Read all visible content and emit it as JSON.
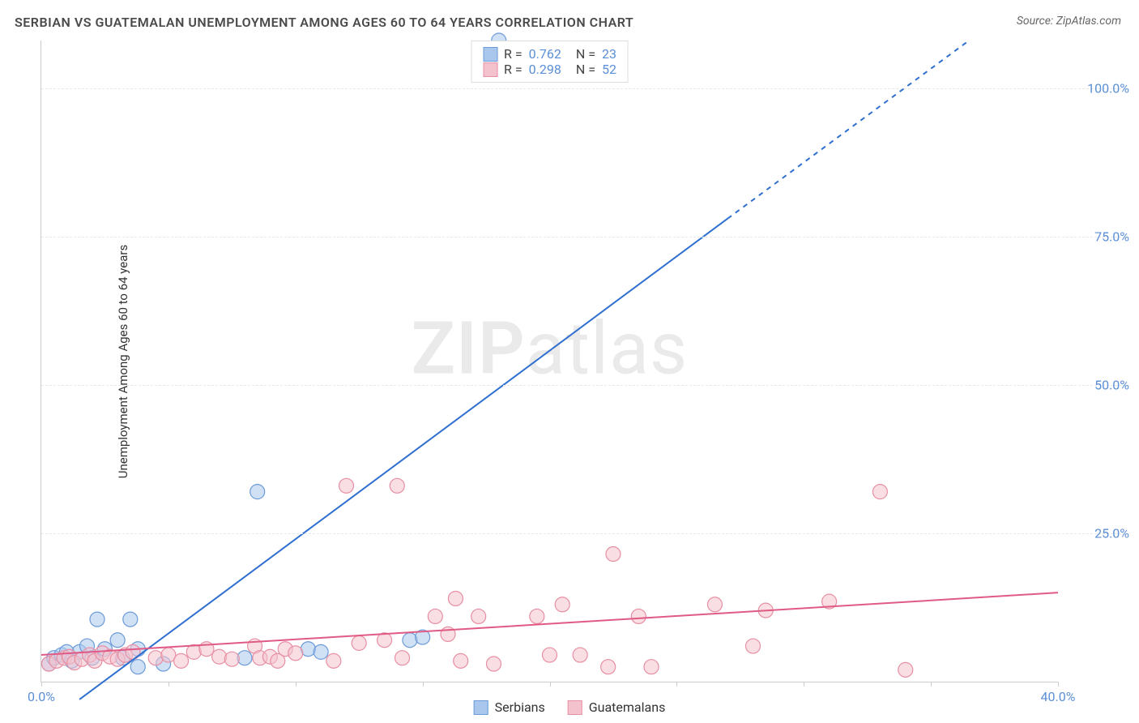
{
  "title": "SERBIAN VS GUATEMALAN UNEMPLOYMENT AMONG AGES 60 TO 64 YEARS CORRELATION CHART",
  "source": "Source: ZipAtlas.com",
  "ylabel": "Unemployment Among Ages 60 to 64 years",
  "watermark": {
    "zip": "ZIP",
    "atlas": "atlas"
  },
  "chart": {
    "type": "scatter",
    "background_color": "#ffffff",
    "grid_color": "#e8e8e8",
    "axis_color": "#cccccc",
    "label_color": "#5b8fd6",
    "title_color": "#4a4a4a",
    "title_fontsize": 16,
    "label_fontsize": 16,
    "xlim": [
      0,
      40
    ],
    "ylim": [
      0,
      108
    ],
    "xticks": [
      0,
      5,
      10,
      15,
      20,
      25,
      30,
      35,
      40
    ],
    "xtick_labels": {
      "0": "0.0%",
      "40": "40.0%"
    },
    "yticks": [
      25,
      50,
      75,
      100
    ],
    "ytick_labels": {
      "25": "25.0%",
      "50": "50.0%",
      "75": "75.0%",
      "100": "100.0%"
    },
    "marker_radius": 9,
    "marker_opacity": 0.55,
    "line_width": 2,
    "series": [
      {
        "name": "Serbians",
        "color_fill": "#a9c7ec",
        "color_stroke": "#6b9bd8",
        "line_color": "#2f6fd0",
        "R": "0.762",
        "N": "23",
        "regression": {
          "x1": 1.5,
          "y1": -3,
          "x2": 27,
          "y2": 78,
          "dash_from_x": 27,
          "x3": 36.5,
          "y3": 108
        },
        "points": [
          [
            0.3,
            3
          ],
          [
            0.5,
            4
          ],
          [
            0.8,
            4.5
          ],
          [
            1.0,
            5
          ],
          [
            1.2,
            3.5
          ],
          [
            1.5,
            5
          ],
          [
            1.8,
            6
          ],
          [
            2.0,
            4
          ],
          [
            2.2,
            10.5
          ],
          [
            2.5,
            5.5
          ],
          [
            3.0,
            7
          ],
          [
            3.2,
            4
          ],
          [
            3.5,
            10.5
          ],
          [
            3.8,
            2.5
          ],
          [
            3.8,
            5.5
          ],
          [
            4.8,
            3
          ],
          [
            8.0,
            4
          ],
          [
            8.5,
            32
          ],
          [
            10.5,
            5.5
          ],
          [
            11.0,
            5
          ],
          [
            14.5,
            7
          ],
          [
            15.0,
            7.5
          ],
          [
            18.0,
            108
          ]
        ]
      },
      {
        "name": "Guatemalans",
        "color_fill": "#f4c2cd",
        "color_stroke": "#e78fa3",
        "line_color": "#e05a86",
        "R": "0.298",
        "N": "52",
        "regression": {
          "x1": 0,
          "y1": 4.5,
          "x2": 40,
          "y2": 15
        },
        "points": [
          [
            0.3,
            3
          ],
          [
            0.6,
            3.5
          ],
          [
            0.9,
            4
          ],
          [
            1.1,
            4.2
          ],
          [
            1.3,
            3.2
          ],
          [
            1.6,
            3.8
          ],
          [
            1.9,
            4.5
          ],
          [
            2.1,
            3.5
          ],
          [
            2.4,
            4.8
          ],
          [
            2.7,
            4.2
          ],
          [
            3.0,
            3.8
          ],
          [
            3.3,
            4.5
          ],
          [
            3.6,
            5
          ],
          [
            4.5,
            4
          ],
          [
            5.0,
            4.5
          ],
          [
            5.5,
            3.5
          ],
          [
            6.0,
            5
          ],
          [
            6.5,
            5.5
          ],
          [
            7.0,
            4.2
          ],
          [
            7.5,
            3.8
          ],
          [
            8.4,
            6
          ],
          [
            8.6,
            4
          ],
          [
            9.0,
            4.2
          ],
          [
            9.3,
            3.5
          ],
          [
            9.6,
            5.5
          ],
          [
            10.0,
            4.8
          ],
          [
            11.5,
            3.5
          ],
          [
            12.0,
            33
          ],
          [
            12.5,
            6.5
          ],
          [
            13.5,
            7
          ],
          [
            14.0,
            33
          ],
          [
            14.2,
            4
          ],
          [
            15.5,
            11
          ],
          [
            16.0,
            8
          ],
          [
            16.3,
            14
          ],
          [
            16.5,
            3.5
          ],
          [
            17.2,
            11
          ],
          [
            17.8,
            3
          ],
          [
            19.5,
            11
          ],
          [
            20.0,
            4.5
          ],
          [
            20.5,
            13
          ],
          [
            21.2,
            4.5
          ],
          [
            22.3,
            2.5
          ],
          [
            22.5,
            21.5
          ],
          [
            23.5,
            11
          ],
          [
            24.0,
            2.5
          ],
          [
            26.5,
            13
          ],
          [
            28.0,
            6
          ],
          [
            28.5,
            12
          ],
          [
            31.0,
            13.5
          ],
          [
            33.0,
            32
          ],
          [
            34.0,
            2
          ]
        ]
      }
    ],
    "legend_bottom": [
      {
        "label": "Serbians",
        "fill": "#a9c7ec",
        "stroke": "#6b9bd8"
      },
      {
        "label": "Guatemalans",
        "fill": "#f4c2cd",
        "stroke": "#e78fa3"
      }
    ]
  }
}
